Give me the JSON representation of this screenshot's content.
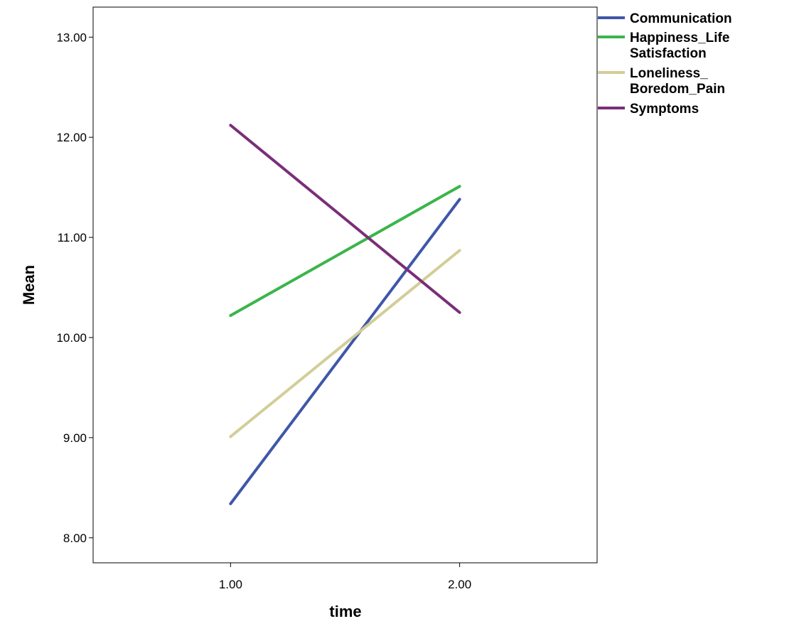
{
  "chart_data": {
    "type": "line",
    "xlabel": "time",
    "ylabel": "Mean",
    "x": [
      1.0,
      2.0
    ],
    "x_tick_labels": [
      "1.00",
      "2.00"
    ],
    "xlim": [
      0.4,
      2.6
    ],
    "ylim": [
      7.75,
      13.3
    ],
    "y_ticks": [
      8.0,
      9.0,
      10.0,
      11.0,
      12.0,
      13.0
    ],
    "y_tick_labels": [
      "8.00",
      "9.00",
      "10.00",
      "11.00",
      "12.00",
      "13.00"
    ],
    "grid": false,
    "legend_position": "top-right, outside plot",
    "series": [
      {
        "name": "Communication",
        "legend_lines": [
          "Communication"
        ],
        "color": "#3F57A8",
        "values": [
          8.34,
          11.38
        ]
      },
      {
        "name": "Happiness_Life Satisfaction",
        "legend_lines": [
          "Happiness_Life",
          "Satisfaction"
        ],
        "color": "#3BB54A",
        "values": [
          10.22,
          11.51
        ]
      },
      {
        "name": "Loneliness_ Boredom_Pain",
        "legend_lines": [
          "Loneliness_",
          "Boredom_Pain"
        ],
        "color": "#D3CD98",
        "values": [
          9.01,
          10.87
        ]
      },
      {
        "name": "Symptoms",
        "legend_lines": [
          "Symptoms"
        ],
        "color": "#7A2E78",
        "values": [
          12.12,
          10.25
        ]
      }
    ]
  }
}
